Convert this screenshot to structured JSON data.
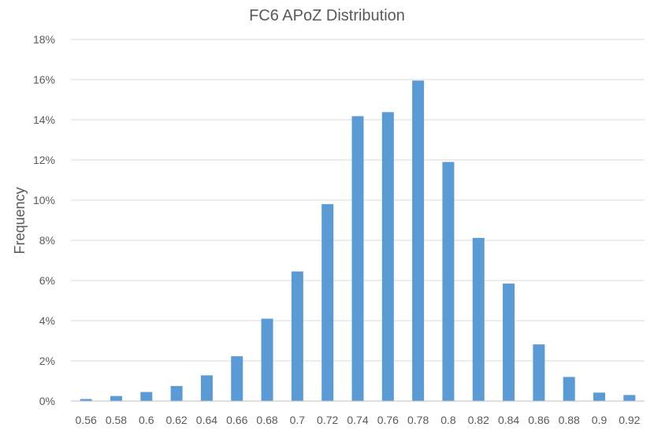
{
  "chart_data": {
    "type": "bar",
    "title": "FC6 APoZ Distribution",
    "xlabel": "",
    "ylabel": "Frequency",
    "categories": [
      "0.56",
      "0.58",
      "0.6",
      "0.62",
      "0.64",
      "0.66",
      "0.68",
      "0.7",
      "0.72",
      "0.74",
      "0.76",
      "0.78",
      "0.8",
      "0.82",
      "0.84",
      "0.86",
      "0.88",
      "0.9",
      "0.92"
    ],
    "values": [
      0.1,
      0.25,
      0.45,
      0.75,
      1.28,
      2.23,
      4.1,
      6.45,
      9.8,
      14.18,
      14.38,
      15.95,
      11.9,
      8.12,
      5.85,
      2.82,
      1.2,
      0.42,
      0.3
    ],
    "value_unit": "%",
    "ylim": [
      0,
      18
    ],
    "yticks": [
      "0%",
      "2%",
      "4%",
      "6%",
      "8%",
      "10%",
      "12%",
      "14%",
      "16%",
      "18%"
    ],
    "grid": true,
    "legend": "none",
    "bar_color": "#5b9bd5"
  }
}
